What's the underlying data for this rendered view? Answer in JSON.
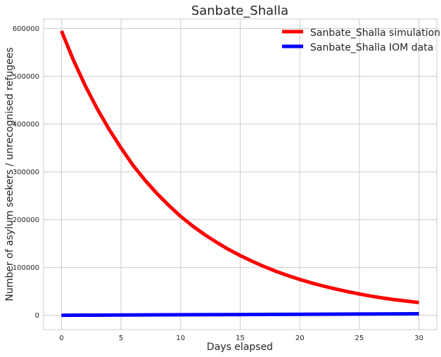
{
  "chart_data": {
    "type": "line",
    "title": "Sanbate_Shalla",
    "xlabel": "Days elapsed",
    "ylabel": "Number of asylum seekers / unrecognised refugees",
    "xlim": [
      -1.5,
      31.5
    ],
    "ylim": [
      -30000,
      620000
    ],
    "xticks": [
      0,
      5,
      10,
      15,
      20,
      25,
      30
    ],
    "yticks": [
      0,
      100000,
      200000,
      300000,
      400000,
      500000,
      600000
    ],
    "grid": true,
    "legend_position": "top-right",
    "series": [
      {
        "name": "Sanbate_Shalla simulation",
        "color": "#ff0000",
        "x": [
          0,
          1,
          2,
          3,
          4,
          5,
          6,
          7,
          8,
          9,
          10,
          11,
          12,
          13,
          14,
          15,
          16,
          17,
          18,
          19,
          20,
          21,
          22,
          23,
          24,
          25,
          26,
          27,
          28,
          29,
          30
        ],
        "y": [
          595000,
          534000,
          480000,
          432000,
          389000,
          350000,
          314000,
          283000,
          255000,
          230000,
          207000,
          187000,
          169000,
          153000,
          138000,
          125000,
          113000,
          102000,
          92000,
          83000,
          75000,
          67500,
          61000,
          55000,
          49500,
          44500,
          40000,
          36000,
          32500,
          29500,
          26500
        ]
      },
      {
        "name": "Sanbate_Shalla IOM data",
        "color": "#0000ff",
        "x": [
          0,
          5,
          10,
          15,
          20,
          25,
          30
        ],
        "y": [
          0,
          500,
          1000,
          1500,
          2000,
          2500,
          3000
        ]
      }
    ]
  }
}
